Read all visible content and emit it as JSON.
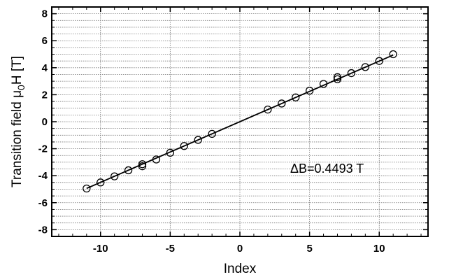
{
  "chart_data": {
    "type": "scatter",
    "xlabel": "Index",
    "ylabel_main": "Transition field  μ",
    "ylabel_sub": "0",
    "ylabel_tail": "H [T]",
    "annotation": "ΔB=0.4493 T",
    "xlim": [
      -13.5,
      13.5
    ],
    "ylim": [
      -8.5,
      8.5
    ],
    "xticks": [
      -10,
      -5,
      0,
      5,
      10
    ],
    "xtick_labels": [
      "-10",
      "-5",
      "0",
      "5",
      "10"
    ],
    "yticks": [
      -8,
      -6,
      -4,
      -2,
      0,
      2,
      4,
      6,
      8
    ],
    "ytick_labels": [
      "-8",
      "-6",
      "-4",
      "-2",
      "0",
      "2",
      "4",
      "6",
      "8"
    ],
    "grid": {
      "x_major": true,
      "y_minor_step": 0.5
    },
    "fit_line": {
      "slope": 0.4493,
      "intercept": 0,
      "x_range": [
        -11,
        11
      ]
    },
    "points": [
      {
        "x": -11,
        "y": -4.95
      },
      {
        "x": -10,
        "y": -4.5
      },
      {
        "x": -9,
        "y": -4.05
      },
      {
        "x": -8,
        "y": -3.6
      },
      {
        "x": -7,
        "y": -3.15
      },
      {
        "x": -7,
        "y": -3.3
      },
      {
        "x": -6,
        "y": -2.8
      },
      {
        "x": -5,
        "y": -2.3
      },
      {
        "x": -4,
        "y": -1.8
      },
      {
        "x": -3,
        "y": -1.35
      },
      {
        "x": -2,
        "y": -0.9
      },
      {
        "x": 2,
        "y": 0.9
      },
      {
        "x": 3,
        "y": 1.35
      },
      {
        "x": 4,
        "y": 1.8
      },
      {
        "x": 5,
        "y": 2.3
      },
      {
        "x": 6,
        "y": 2.8
      },
      {
        "x": 7,
        "y": 3.15
      },
      {
        "x": 7,
        "y": 3.3
      },
      {
        "x": 8,
        "y": 3.6
      },
      {
        "x": 9,
        "y": 4.05
      },
      {
        "x": 10,
        "y": 4.5
      },
      {
        "x": 11,
        "y": 5.0
      }
    ]
  }
}
